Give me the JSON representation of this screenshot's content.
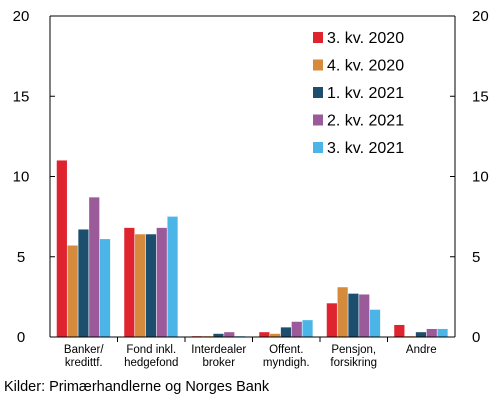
{
  "chart_data": {
    "type": "bar",
    "title": "",
    "xlabel": "",
    "ylabel": "",
    "ylim": [
      0,
      20
    ],
    "yticks": [
      0,
      5,
      10,
      15,
      20
    ],
    "secondary_yticks": [
      0,
      5,
      10,
      15,
      20
    ],
    "grid": false,
    "legend_position": "top-right",
    "categories": [
      [
        "Banker/",
        "kredittf."
      ],
      [
        "Fond inkl.",
        "hedgefond"
      ],
      [
        "Interdealer",
        "broker"
      ],
      [
        "Offent.",
        "myndigh."
      ],
      [
        "Pensjon,",
        "forsikring"
      ],
      [
        "Andre"
      ]
    ],
    "series": [
      {
        "name": "3. kv. 2020",
        "color": "#e0242f",
        "values": [
          11.0,
          6.8,
          0.05,
          0.3,
          2.1,
          0.75
        ]
      },
      {
        "name": "4. kv. 2020",
        "color": "#d58a3c",
        "values": [
          5.7,
          6.4,
          0.05,
          0.2,
          3.1,
          0.05
        ]
      },
      {
        "name": "1. kv. 2021",
        "color": "#1d4e6e",
        "values": [
          6.7,
          6.4,
          0.2,
          0.6,
          2.7,
          0.3
        ]
      },
      {
        "name": "2. kv. 2021",
        "color": "#9b5a9a",
        "values": [
          8.7,
          6.8,
          0.3,
          0.95,
          2.65,
          0.5
        ]
      },
      {
        "name": "3. kv. 2021",
        "color": "#4ab5e6",
        "values": [
          6.1,
          7.5,
          0.05,
          1.05,
          1.7,
          0.5
        ]
      }
    ]
  },
  "source_text": "Kilder: Primærhandlerne og Norges Bank"
}
